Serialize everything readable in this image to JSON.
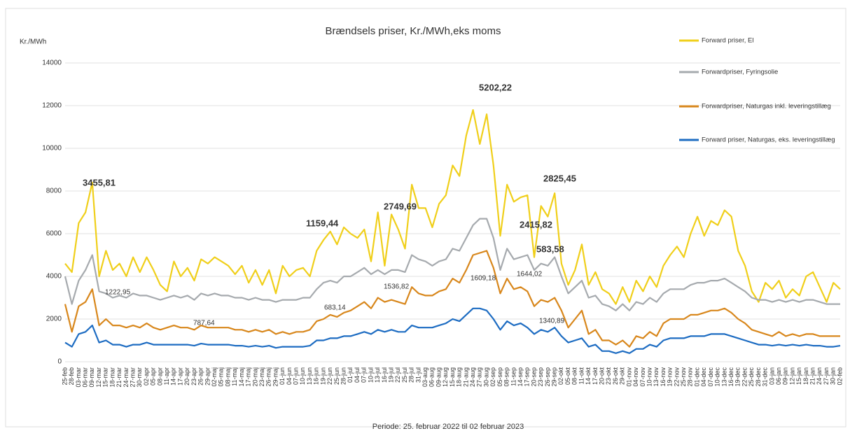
{
  "chart_data": {
    "type": "line",
    "title": "Brændsels priser, Kr./MWh,eks moms",
    "y_label": "Kr./MWh",
    "x_label": "Periode: 25. februar 2022 til 02 februar 2023",
    "categories": [
      "25-feb",
      "28-feb",
      "03-mar",
      "06-mar",
      "09-mar",
      "12-mar",
      "15-mar",
      "18-mar",
      "21-mar",
      "24-mar",
      "27-mar",
      "30-mar",
      "02-apr",
      "05-apr",
      "08-apr",
      "11-apr",
      "14-apr",
      "17-apr",
      "20-apr",
      "23-apr",
      "26-apr",
      "29-apr",
      "02-maj",
      "05-maj",
      "08-maj",
      "11-maj",
      "14-maj",
      "17-maj",
      "20-maj",
      "23-maj",
      "26-maj",
      "29-maj",
      "01-jun",
      "04-jun",
      "07-jun",
      "10-jun",
      "13-jun",
      "16-jun",
      "19-jun",
      "22-jun",
      "25-jun",
      "28-jun",
      "01-jul",
      "04-jul",
      "07-jul",
      "10-jul",
      "13-jul",
      "16-jul",
      "19-jul",
      "22-jul",
      "25-jul",
      "28-jul",
      "31-jul",
      "03-aug",
      "06-aug",
      "09-aug",
      "12-aug",
      "15-aug",
      "18-aug",
      "21-aug",
      "24-aug",
      "27-aug",
      "30-aug",
      "02-sep",
      "05-sep",
      "08-sep",
      "11-sep",
      "14-sep",
      "17-sep",
      "20-sep",
      "23-sep",
      "26-sep",
      "29-sep",
      "02-okt",
      "05-okt",
      "08-okt",
      "11-okt",
      "14-okt",
      "17-okt",
      "20-okt",
      "23-okt",
      "26-okt",
      "29-okt",
      "01-nov",
      "04-nov",
      "07-nov",
      "10-nov",
      "13-nov",
      "16-nov",
      "19-nov",
      "22-nov",
      "25-nov",
      "28-nov",
      "01-dec",
      "04-dec",
      "07-dec",
      "10-dec",
      "13-dec",
      "16-dec",
      "19-dec",
      "22-dec",
      "25-dec",
      "28-dec",
      "31-dec",
      "03-jan",
      "06-jan",
      "09-jan",
      "12-jan",
      "15-jan",
      "18-jan",
      "21-jan",
      "24-jan",
      "27-jan",
      "30-jan",
      "02-feb"
    ],
    "series": [
      {
        "name": "Forward priser, El",
        "color": "#f0cf1a",
        "values": [
          4600,
          4200,
          6500,
          7000,
          8400,
          4000,
          5200,
          4300,
          4600,
          4000,
          4900,
          4200,
          4900,
          4300,
          3600,
          3300,
          4700,
          4000,
          4400,
          3800,
          4800,
          4600,
          4900,
          4700,
          4500,
          4100,
          4500,
          3700,
          4300,
          3600,
          4300,
          3200,
          4500,
          4000,
          4300,
          4400,
          4000,
          5200,
          5700,
          6100,
          5500,
          6300,
          6000,
          5800,
          6200,
          4700,
          7000,
          4500,
          6900,
          6200,
          5300,
          8300,
          7200,
          7200,
          6300,
          7400,
          7800,
          9200,
          8700,
          10600,
          11800,
          10200,
          11600,
          9200,
          5900,
          8300,
          7500,
          7700,
          7800,
          4900,
          7300,
          6800,
          7900,
          4600,
          3600,
          4300,
          5500,
          3600,
          4200,
          3400,
          3200,
          2700,
          3500,
          2800,
          3800,
          3300,
          4000,
          3500,
          4500,
          5000,
          5400,
          4900,
          6000,
          6800,
          5900,
          6600,
          6400,
          7100,
          6800,
          5200,
          4500,
          3300,
          2800,
          3700,
          3400,
          3800,
          3000,
          3400,
          3100,
          4000,
          4200,
          3500,
          2800,
          3700,
          3400
        ]
      },
      {
        "name": "Forwardpriser, Fyringsolie",
        "color": "#a6aaae",
        "values": [
          4000,
          2700,
          3800,
          4300,
          5000,
          3300,
          3200,
          3000,
          3100,
          3000,
          3200,
          3100,
          3100,
          3000,
          2900,
          3000,
          3100,
          3000,
          3100,
          2900,
          3200,
          3100,
          3200,
          3100,
          3100,
          3000,
          3000,
          2900,
          3000,
          2900,
          2900,
          2800,
          2900,
          2900,
          2900,
          3000,
          3000,
          3400,
          3700,
          3800,
          3700,
          4000,
          4000,
          4200,
          4400,
          4100,
          4300,
          4100,
          4300,
          4300,
          4200,
          5000,
          4800,
          4700,
          4500,
          4700,
          4800,
          5300,
          5200,
          5800,
          6400,
          6700,
          6700,
          5800,
          4300,
          5300,
          4800,
          4900,
          5000,
          4300,
          4600,
          4500,
          4900,
          4000,
          3200,
          3500,
          3800,
          3000,
          3100,
          2700,
          2600,
          2400,
          2700,
          2400,
          2800,
          2700,
          3000,
          2800,
          3200,
          3400,
          3400,
          3400,
          3600,
          3700,
          3700,
          3800,
          3800,
          3900,
          3700,
          3500,
          3300,
          3000,
          2900,
          2900,
          2800,
          2900,
          2800,
          2900,
          2800,
          2900,
          2900,
          2800,
          2700,
          2700,
          2700
        ]
      },
      {
        "name": "Forwardpriser, Naturgas inkl. leveringstillæg",
        "color": "#d8871c",
        "values": [
          2700,
          1400,
          2600,
          2800,
          3400,
          1700,
          2000,
          1700,
          1700,
          1600,
          1700,
          1600,
          1800,
          1600,
          1500,
          1600,
          1700,
          1600,
          1600,
          1500,
          1700,
          1600,
          1600,
          1600,
          1600,
          1500,
          1500,
          1400,
          1500,
          1400,
          1500,
          1300,
          1400,
          1300,
          1400,
          1400,
          1500,
          1900,
          2000,
          2200,
          2100,
          2300,
          2400,
          2600,
          2800,
          2500,
          3000,
          2800,
          2900,
          2800,
          2700,
          3500,
          3200,
          3100,
          3100,
          3300,
          3400,
          3900,
          3700,
          4300,
          5000,
          5100,
          5200,
          4400,
          3200,
          3900,
          3400,
          3500,
          3300,
          2600,
          2900,
          2800,
          3000,
          2400,
          1600,
          2000,
          2400,
          1300,
          1500,
          1000,
          1000,
          800,
          1000,
          700,
          1200,
          1100,
          1400,
          1200,
          1800,
          2000,
          2000,
          2000,
          2200,
          2200,
          2300,
          2400,
          2400,
          2500,
          2300,
          2000,
          1800,
          1500,
          1400,
          1300,
          1200,
          1400,
          1200,
          1300,
          1200,
          1300,
          1300,
          1200,
          1200,
          1200,
          1200
        ]
      },
      {
        "name": "Forward priser, Naturgas, eks. leveringstillæg",
        "color": "#1d6cc2",
        "values": [
          900,
          700,
          1300,
          1400,
          1700,
          900,
          1000,
          800,
          800,
          700,
          800,
          800,
          900,
          800,
          800,
          800,
          800,
          800,
          800,
          750,
          850,
          800,
          800,
          800,
          800,
          750,
          750,
          700,
          750,
          700,
          750,
          650,
          700,
          700,
          700,
          700,
          750,
          1000,
          1000,
          1100,
          1100,
          1200,
          1200,
          1300,
          1400,
          1300,
          1500,
          1400,
          1500,
          1400,
          1400,
          1700,
          1600,
          1600,
          1600,
          1700,
          1800,
          2000,
          1900,
          2200,
          2500,
          2500,
          2400,
          2000,
          1500,
          1900,
          1700,
          1800,
          1600,
          1300,
          1500,
          1400,
          1600,
          1200,
          900,
          1000,
          1100,
          700,
          800,
          500,
          500,
          400,
          500,
          400,
          600,
          600,
          800,
          700,
          1000,
          1100,
          1100,
          1100,
          1200,
          1200,
          1200,
          1300,
          1300,
          1300,
          1200,
          1100,
          1000,
          900,
          800,
          800,
          750,
          800,
          750,
          800,
          750,
          800,
          750,
          750,
          700,
          700,
          750
        ]
      }
    ],
    "annotations": [
      "3455,81",
      "1222,95",
      "787,64",
      "1159,44",
      "683,14",
      "2749,69",
      "1536,82",
      "5202,22",
      "1609,18",
      "2415,82",
      "1644,02",
      "583,58",
      "1340,89",
      "2825,45"
    ],
    "ylim": [
      0,
      14000
    ],
    "yticks": [
      0,
      2000,
      4000,
      6000,
      8000,
      10000,
      12000,
      14000
    ],
    "grid": true,
    "legend": "right"
  }
}
